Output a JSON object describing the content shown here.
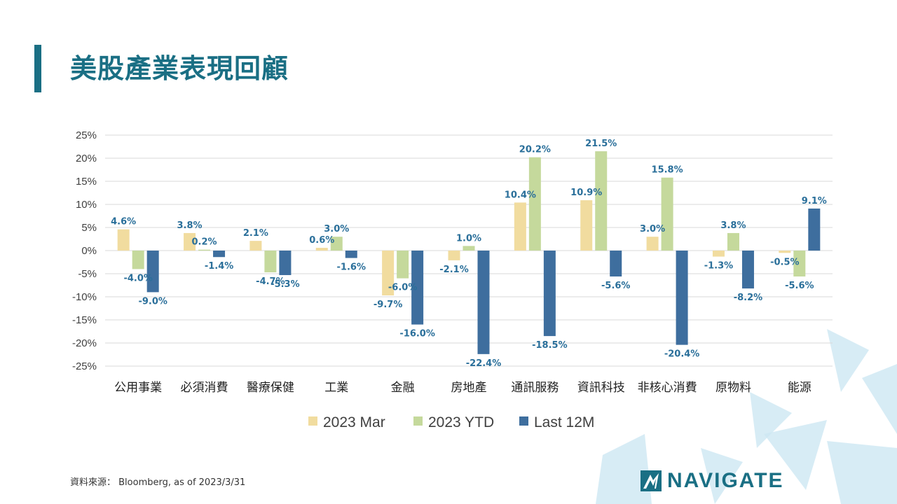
{
  "page": {
    "title": "美股產業表現回顧",
    "source": "資料來源： Bloomberg, as of 2023/3/31",
    "brand": "NAVIGATE"
  },
  "colors": {
    "accent": "#1a6f84",
    "series_mar": "#f1dc9f",
    "series_ytd": "#c5d99c",
    "series_12m": "#3e6e9e",
    "label_text": "#2a6f9a",
    "axis_text": "#404040",
    "grid": "#d9d9d9",
    "decor": "#cde7f3"
  },
  "chart_data": {
    "type": "bar",
    "title": "",
    "xlabel": "",
    "ylabel": "",
    "ylim": [
      -25,
      25
    ],
    "yticks": [
      25,
      20,
      15,
      10,
      5,
      0,
      -5,
      -10,
      -15,
      -20,
      -25
    ],
    "ytick_labels": [
      "25%",
      "20%",
      "15%",
      "10%",
      "5%",
      "0%",
      "-5%",
      "-10%",
      "-15%",
      "-20%",
      "-25%"
    ],
    "grid": true,
    "legend_position": "bottom-center",
    "categories": [
      "公用事業",
      "必須消費",
      "醫療保健",
      "工業",
      "金融",
      "房地產",
      "通訊服務",
      "資訊科技",
      "非核心消費",
      "原物料",
      "能源"
    ],
    "series": [
      {
        "name": "2023 Mar",
        "values": [
          4.6,
          3.8,
          2.1,
          0.6,
          -9.7,
          -2.1,
          10.4,
          10.9,
          3.0,
          -1.3,
          -0.5
        ],
        "labels": [
          "4.6%",
          "3.8%",
          "2.1%",
          "0.6%",
          "-9.7%",
          "-2.1%",
          "10.4%",
          "10.9%",
          "3.0%",
          "-1.3%",
          "-0.5%"
        ]
      },
      {
        "name": "2023 YTD",
        "values": [
          -4.0,
          0.2,
          -4.7,
          3.0,
          -6.0,
          1.0,
          20.2,
          21.5,
          15.8,
          3.8,
          -5.6
        ],
        "labels": [
          "-4.0%",
          "0.2%",
          "-4.7%",
          "3.0%",
          "-6.0%",
          "1.0%",
          "20.2%",
          "21.5%",
          "15.8%",
          "3.8%",
          "-5.6%"
        ]
      },
      {
        "name": "Last 12M",
        "values": [
          -9.0,
          -1.4,
          -5.3,
          -1.6,
          -16.0,
          -22.4,
          -18.5,
          -5.6,
          -20.4,
          -8.2,
          9.1
        ],
        "labels": [
          "-9.0%",
          "-1.4%",
          "-5.3%",
          "-1.6%",
          "-16.0%",
          "-22.4%",
          "-18.5%",
          "-5.6%",
          "-20.4%",
          "-8.2%",
          "9.1%"
        ]
      }
    ]
  }
}
